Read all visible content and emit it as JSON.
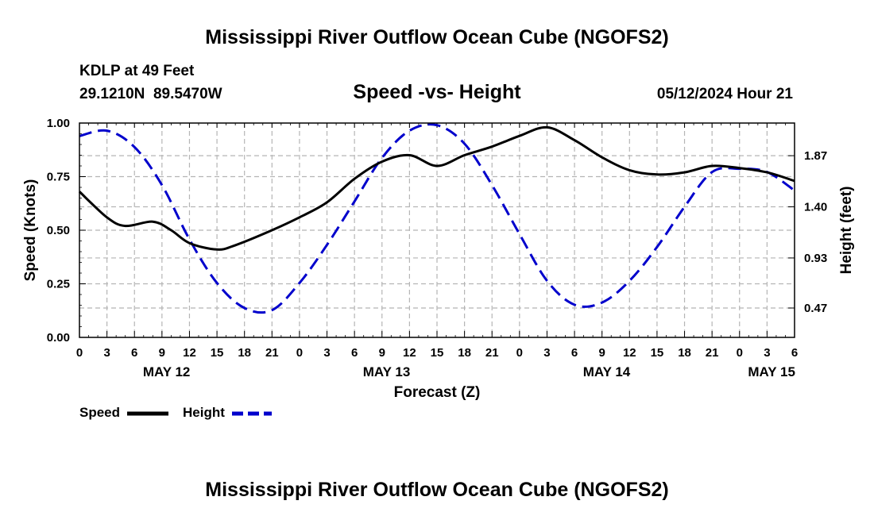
{
  "page": {
    "title": "Mississippi River Outflow Ocean Cube (NGOFS2)",
    "footer_title": "Mississippi River Outflow Ocean Cube (NGOFS2)"
  },
  "station": {
    "name": "KDLP at 49 Feet",
    "coords": "29.1210N  89.5470W"
  },
  "run_time": "05/12/2024 Hour 21",
  "chart_data": {
    "type": "line",
    "title": "Speed -vs- Height",
    "xlabel": "Forecast (Z)",
    "ylabel": "Speed (Knots)",
    "y2label": "Height (feet)",
    "xlim": [
      0,
      78
    ],
    "ylim": [
      0,
      1
    ],
    "y2lim": [
      0.2,
      2.17
    ],
    "grid": true,
    "x_tick_values": [
      0,
      3,
      6,
      9,
      12,
      15,
      18,
      21,
      24,
      27,
      30,
      33,
      36,
      39,
      42,
      45,
      48,
      51,
      54,
      57,
      60,
      63,
      66,
      69,
      72,
      75,
      78
    ],
    "x_tick_labels": [
      "0",
      "3",
      "6",
      "9",
      "12",
      "15",
      "18",
      "21",
      "0",
      "3",
      "6",
      "9",
      "12",
      "15",
      "18",
      "21",
      "0",
      "3",
      "6",
      "9",
      "12",
      "15",
      "18",
      "21",
      "0",
      "3",
      "6"
    ],
    "date_labels": [
      {
        "x": 9.5,
        "label": "MAY 12"
      },
      {
        "x": 33.5,
        "label": "MAY 13"
      },
      {
        "x": 57.5,
        "label": "MAY 14"
      },
      {
        "x": 75.5,
        "label": "MAY 15"
      }
    ],
    "y_ticks": [
      {
        "value": 0,
        "label": "0.00"
      },
      {
        "value": 0.25,
        "label": "0.25"
      },
      {
        "value": 0.5,
        "label": "0.50"
      },
      {
        "value": 0.75,
        "label": "0.75"
      },
      {
        "value": 1,
        "label": "1.00"
      }
    ],
    "y2_ticks": [
      {
        "value": 0.47,
        "label": "0.47"
      },
      {
        "value": 0.93,
        "label": "0.93"
      },
      {
        "value": 1.4,
        "label": "1.40"
      },
      {
        "value": 1.87,
        "label": "1.87"
      }
    ],
    "series": [
      {
        "name": "Speed",
        "axis": "left",
        "color": "#000000",
        "dash": "solid",
        "x": [
          0,
          3,
          5,
          8,
          10,
          12,
          15,
          17,
          21,
          24,
          27,
          30,
          33,
          36,
          39,
          42,
          45,
          48,
          51,
          54,
          57,
          60,
          63,
          66,
          69,
          72,
          75,
          78
        ],
        "values": [
          0.68,
          0.56,
          0.52,
          0.54,
          0.5,
          0.44,
          0.41,
          0.43,
          0.5,
          0.56,
          0.63,
          0.74,
          0.82,
          0.85,
          0.8,
          0.85,
          0.89,
          0.94,
          0.98,
          0.92,
          0.84,
          0.78,
          0.76,
          0.77,
          0.8,
          0.79,
          0.77,
          0.73
        ]
      },
      {
        "name": "Height",
        "axis": "right",
        "color": "#0000cc",
        "dash": "dashed",
        "x": [
          0,
          3,
          6,
          9,
          12,
          15,
          18,
          21,
          24,
          27,
          30,
          33,
          36,
          39,
          42,
          45,
          48,
          51,
          54,
          57,
          60,
          63,
          66,
          69,
          72,
          75,
          78
        ],
        "values": [
          2.05,
          2.1,
          1.95,
          1.6,
          1.1,
          0.7,
          0.47,
          0.45,
          0.7,
          1.05,
          1.45,
          1.85,
          2.1,
          2.15,
          1.98,
          1.6,
          1.15,
          0.72,
          0.5,
          0.52,
          0.72,
          1.03,
          1.4,
          1.72,
          1.75,
          1.72,
          1.55
        ]
      }
    ],
    "legend": [
      {
        "label": "Speed",
        "color": "#000000",
        "dash": "solid"
      },
      {
        "label": "Height",
        "color": "#0000cc",
        "dash": "dashed"
      }
    ],
    "legend_position": "bottom-left"
  }
}
